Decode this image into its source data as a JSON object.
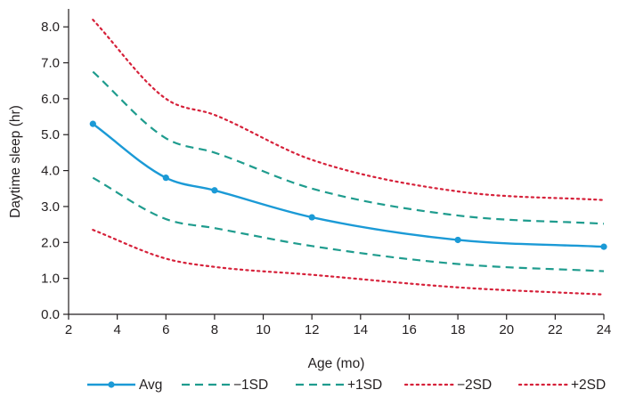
{
  "chart_data": {
    "type": "line",
    "xlabel": "Age (mo)",
    "ylabel": "Daytime sleep (hr)",
    "xlim": [
      2,
      24
    ],
    "ylim": [
      0,
      8.5
    ],
    "x_ticks": [
      "2",
      "4",
      "6",
      "8",
      "10",
      "12",
      "14",
      "16",
      "18",
      "20",
      "22",
      "24"
    ],
    "y_ticks": [
      "0.0",
      "1.0",
      "2.0",
      "3.0",
      "4.0",
      "5.0",
      "6.0",
      "7.0",
      "8.0"
    ],
    "grid": false,
    "legend_position": "bottom",
    "series": [
      {
        "name": "Avg",
        "color": "#1b9ad6",
        "style": "solid",
        "markers": true,
        "x": [
          3,
          6,
          8,
          12,
          18,
          24
        ],
        "y": [
          5.3,
          3.8,
          3.45,
          2.7,
          2.07,
          1.88
        ]
      },
      {
        "name": "−1SD",
        "color": "#1f9c8e",
        "style": "dashed",
        "markers": false,
        "x": [
          3,
          6,
          8,
          12,
          18,
          24
        ],
        "y": [
          3.8,
          2.65,
          2.4,
          1.9,
          1.4,
          1.2
        ]
      },
      {
        "name": "+1SD",
        "color": "#1f9c8e",
        "style": "dashed",
        "markers": false,
        "x": [
          3,
          6,
          8,
          12,
          18,
          24
        ],
        "y": [
          6.75,
          4.9,
          4.5,
          3.5,
          2.75,
          2.52
        ]
      },
      {
        "name": "−2SD",
        "color": "#d6213a",
        "style": "dotted",
        "markers": false,
        "x": [
          3,
          6,
          8,
          12,
          18,
          24
        ],
        "y": [
          2.35,
          1.55,
          1.32,
          1.1,
          0.75,
          0.55
        ]
      },
      {
        "name": "+2SD",
        "color": "#d6213a",
        "style": "dotted",
        "markers": false,
        "x": [
          3,
          6,
          8,
          12,
          18,
          24
        ],
        "y": [
          8.2,
          6.0,
          5.55,
          4.3,
          3.42,
          3.18
        ]
      }
    ]
  }
}
